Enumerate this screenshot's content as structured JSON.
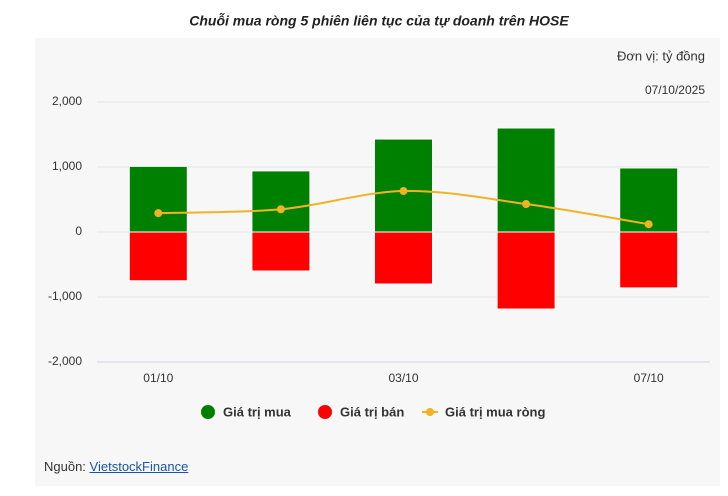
{
  "chart_data": {
    "type": "bar",
    "title": "Chuỗi mua ròng 5 phiên liên tục của tự doanh trên HOSE",
    "unit_note": "Đơn vị: tỷ đồng",
    "date_note": "07/10/2025",
    "categories": [
      "01/10",
      null,
      "03/10",
      null,
      "07/10"
    ],
    "series": [
      {
        "name": "Giá trị mua",
        "type": "bar",
        "color": "#008000",
        "values": [
          1010,
          940,
          1430,
          1600,
          985
        ]
      },
      {
        "name": "Giá trị bán",
        "type": "bar",
        "color": "#ff0000",
        "values": [
          -750,
          -600,
          -800,
          -1185,
          -860
        ]
      },
      {
        "name": "Giá trị mua ròng",
        "type": "line",
        "color": "#f0b323",
        "values": [
          290,
          350,
          630,
          430,
          120
        ]
      }
    ],
    "ylim": [
      -2000,
      2000
    ],
    "yticks": [
      {
        "value": -2000,
        "label": "-2,000"
      },
      {
        "value": -1000,
        "label": "-1,000"
      },
      0,
      {
        "value": 1000,
        "label": "1,000"
      },
      {
        "value": 2000,
        "label": "2,000"
      }
    ],
    "grid": true,
    "legend": "bottom"
  },
  "source": {
    "label": "Nguồn:",
    "link": "VietstockFinance"
  }
}
